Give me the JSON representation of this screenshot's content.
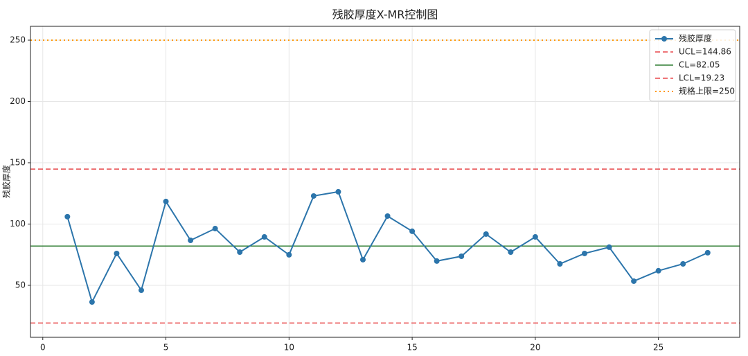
{
  "chart_data": {
    "type": "line",
    "title": "残胶厚度X-MR控制图",
    "y_label": "残胶厚度",
    "x": [
      1,
      2,
      3,
      4,
      5,
      6,
      7,
      8,
      9,
      10,
      11,
      12,
      13,
      14,
      15,
      16,
      17,
      18,
      19,
      20,
      21,
      22,
      23,
      24,
      25,
      26,
      27
    ],
    "series": [
      {
        "name": "残胶厚度",
        "color": "#2c75ab",
        "values": [
          106,
          36.4,
          76,
          46,
          118.4,
          86.7,
          96.3,
          77.1,
          89.5,
          74.9,
          122.9,
          126.3,
          70.9,
          106.5,
          94.1,
          69.8,
          73.7,
          91.8,
          77.1,
          89.5,
          67.5,
          76,
          81.1,
          53.4,
          61.9,
          67.5,
          76.6
        ]
      }
    ],
    "reference_lines": [
      {
        "name": "UCL=144.86",
        "value": 144.86,
        "color": "#e8474a",
        "style": "dashed"
      },
      {
        "name": "CL=82.05",
        "value": 82.05,
        "color": "#2e7d32",
        "style": "solid"
      },
      {
        "name": "LCL=19.23",
        "value": 19.23,
        "color": "#e8474a",
        "style": "dashed"
      },
      {
        "name": "规格上限=250",
        "value": 250,
        "color": "#ff9800",
        "style": "dotted"
      }
    ],
    "xlim": [
      -0.5,
      28.3
    ],
    "ylim": [
      7.6,
      261.3
    ],
    "xticks": [
      0,
      5,
      10,
      15,
      20,
      25
    ],
    "yticks": [
      50,
      100,
      150,
      200,
      250
    ],
    "grid": true,
    "legend": "upper right"
  }
}
